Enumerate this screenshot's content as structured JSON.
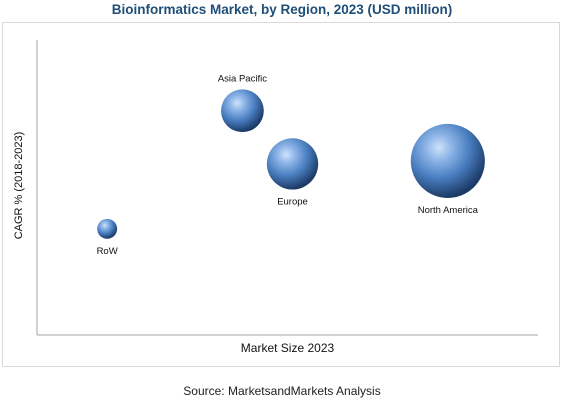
{
  "chart_data": {
    "type": "bubble",
    "title": "Bioinformatics Market, by Region, 2023 (USD million)",
    "xlabel": "Market Size 2023",
    "ylabel": "CAGR % (2018-2023)",
    "grid": false,
    "axis_ticks": false,
    "points": [
      {
        "label": "Asia Pacific",
        "x": 2.05,
        "y": 7.6,
        "size": 0.75
      },
      {
        "label": "Europe",
        "x": 2.55,
        "y": 5.8,
        "size": 0.9
      },
      {
        "label": "North America",
        "x": 4.1,
        "y": 5.9,
        "size": 1.3
      },
      {
        "label": "RoW",
        "x": 0.7,
        "y": 3.6,
        "size": 0.35
      }
    ],
    "xlim": [
      0,
      5
    ],
    "ylim": [
      0,
      10
    ],
    "colors": {
      "bubble_light": "#a9c8ee",
      "bubble_mid": "#4a7fc1",
      "bubble_dark": "#1c3a66",
      "title": "#1f4e79"
    }
  },
  "source": "Source: MarketsandMarkets Analysis"
}
